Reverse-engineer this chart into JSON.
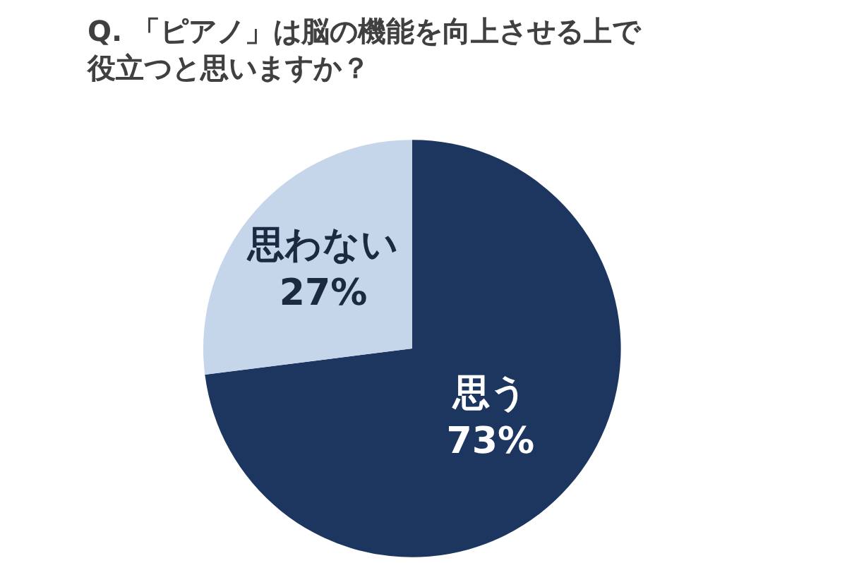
{
  "chart_data": {
    "type": "pie",
    "title": "Q. 「ピアノ」は脳の機能を向上させる上で役立つと思いますか？",
    "categories": [
      "思う",
      "思わない"
    ],
    "values": [
      73,
      27
    ],
    "colors": [
      "#1c3660",
      "#c5d5ea"
    ],
    "value_labels": [
      "73%",
      "27%"
    ],
    "legend": false
  }
}
